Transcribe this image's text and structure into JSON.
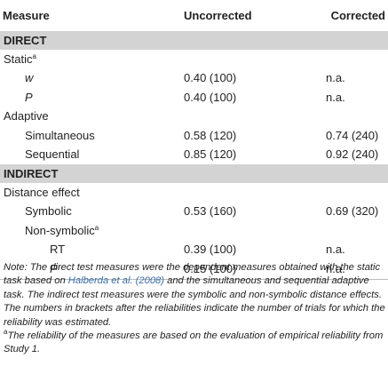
{
  "header": {
    "measure": "Measure",
    "uncorrected": "Uncorrected",
    "corrected": "Corrected"
  },
  "sections": {
    "direct": "DIRECT",
    "indirect": "INDIRECT"
  },
  "rows": {
    "static": {
      "label": "Static",
      "sup": "a"
    },
    "w": {
      "label": "w",
      "uncorrected": "0.40 (100)",
      "corrected": "n.a."
    },
    "p": {
      "label": "P",
      "uncorrected": "0.40 (100)",
      "corrected": "n.a."
    },
    "adaptive": {
      "label": "Adaptive"
    },
    "simultaneous": {
      "label": "Simultaneous",
      "uncorrected": "0.58 (120)",
      "corrected": "0.74 (240)"
    },
    "sequential": {
      "label": "Sequential",
      "uncorrected": "0.85 (120)",
      "corrected": "0.92 (240)"
    },
    "distance": {
      "label": "Distance effect"
    },
    "symbolic": {
      "label": "Symbolic",
      "uncorrected": "0.53 (160)",
      "corrected": "0.69 (320)"
    },
    "nonsymbolic": {
      "label": "Non-symbolic",
      "sup": "a"
    },
    "rt": {
      "label": "RT",
      "uncorrected": "0.39 (100)",
      "corrected": "n.a."
    },
    "p2": {
      "label": "P",
      "uncorrected": "0.15 (100)",
      "corrected": "n.a."
    }
  },
  "note": {
    "part1": "Note: The direct test measures were the dependent measures obtained with the static task based on ",
    "link": "Halberda et al. (2008)",
    "part2": " and the simultaneous and sequential adaptive task. The indirect test measures were the symbolic and non-symbolic distance effects. The numbers in brackets after the reliabilities indicate the number of trials for which the reliability was estimated.",
    "footnote_marker": "a",
    "footnote": "The reliability of the measures are based on the evaluation of empirical reliability from Study 1."
  }
}
